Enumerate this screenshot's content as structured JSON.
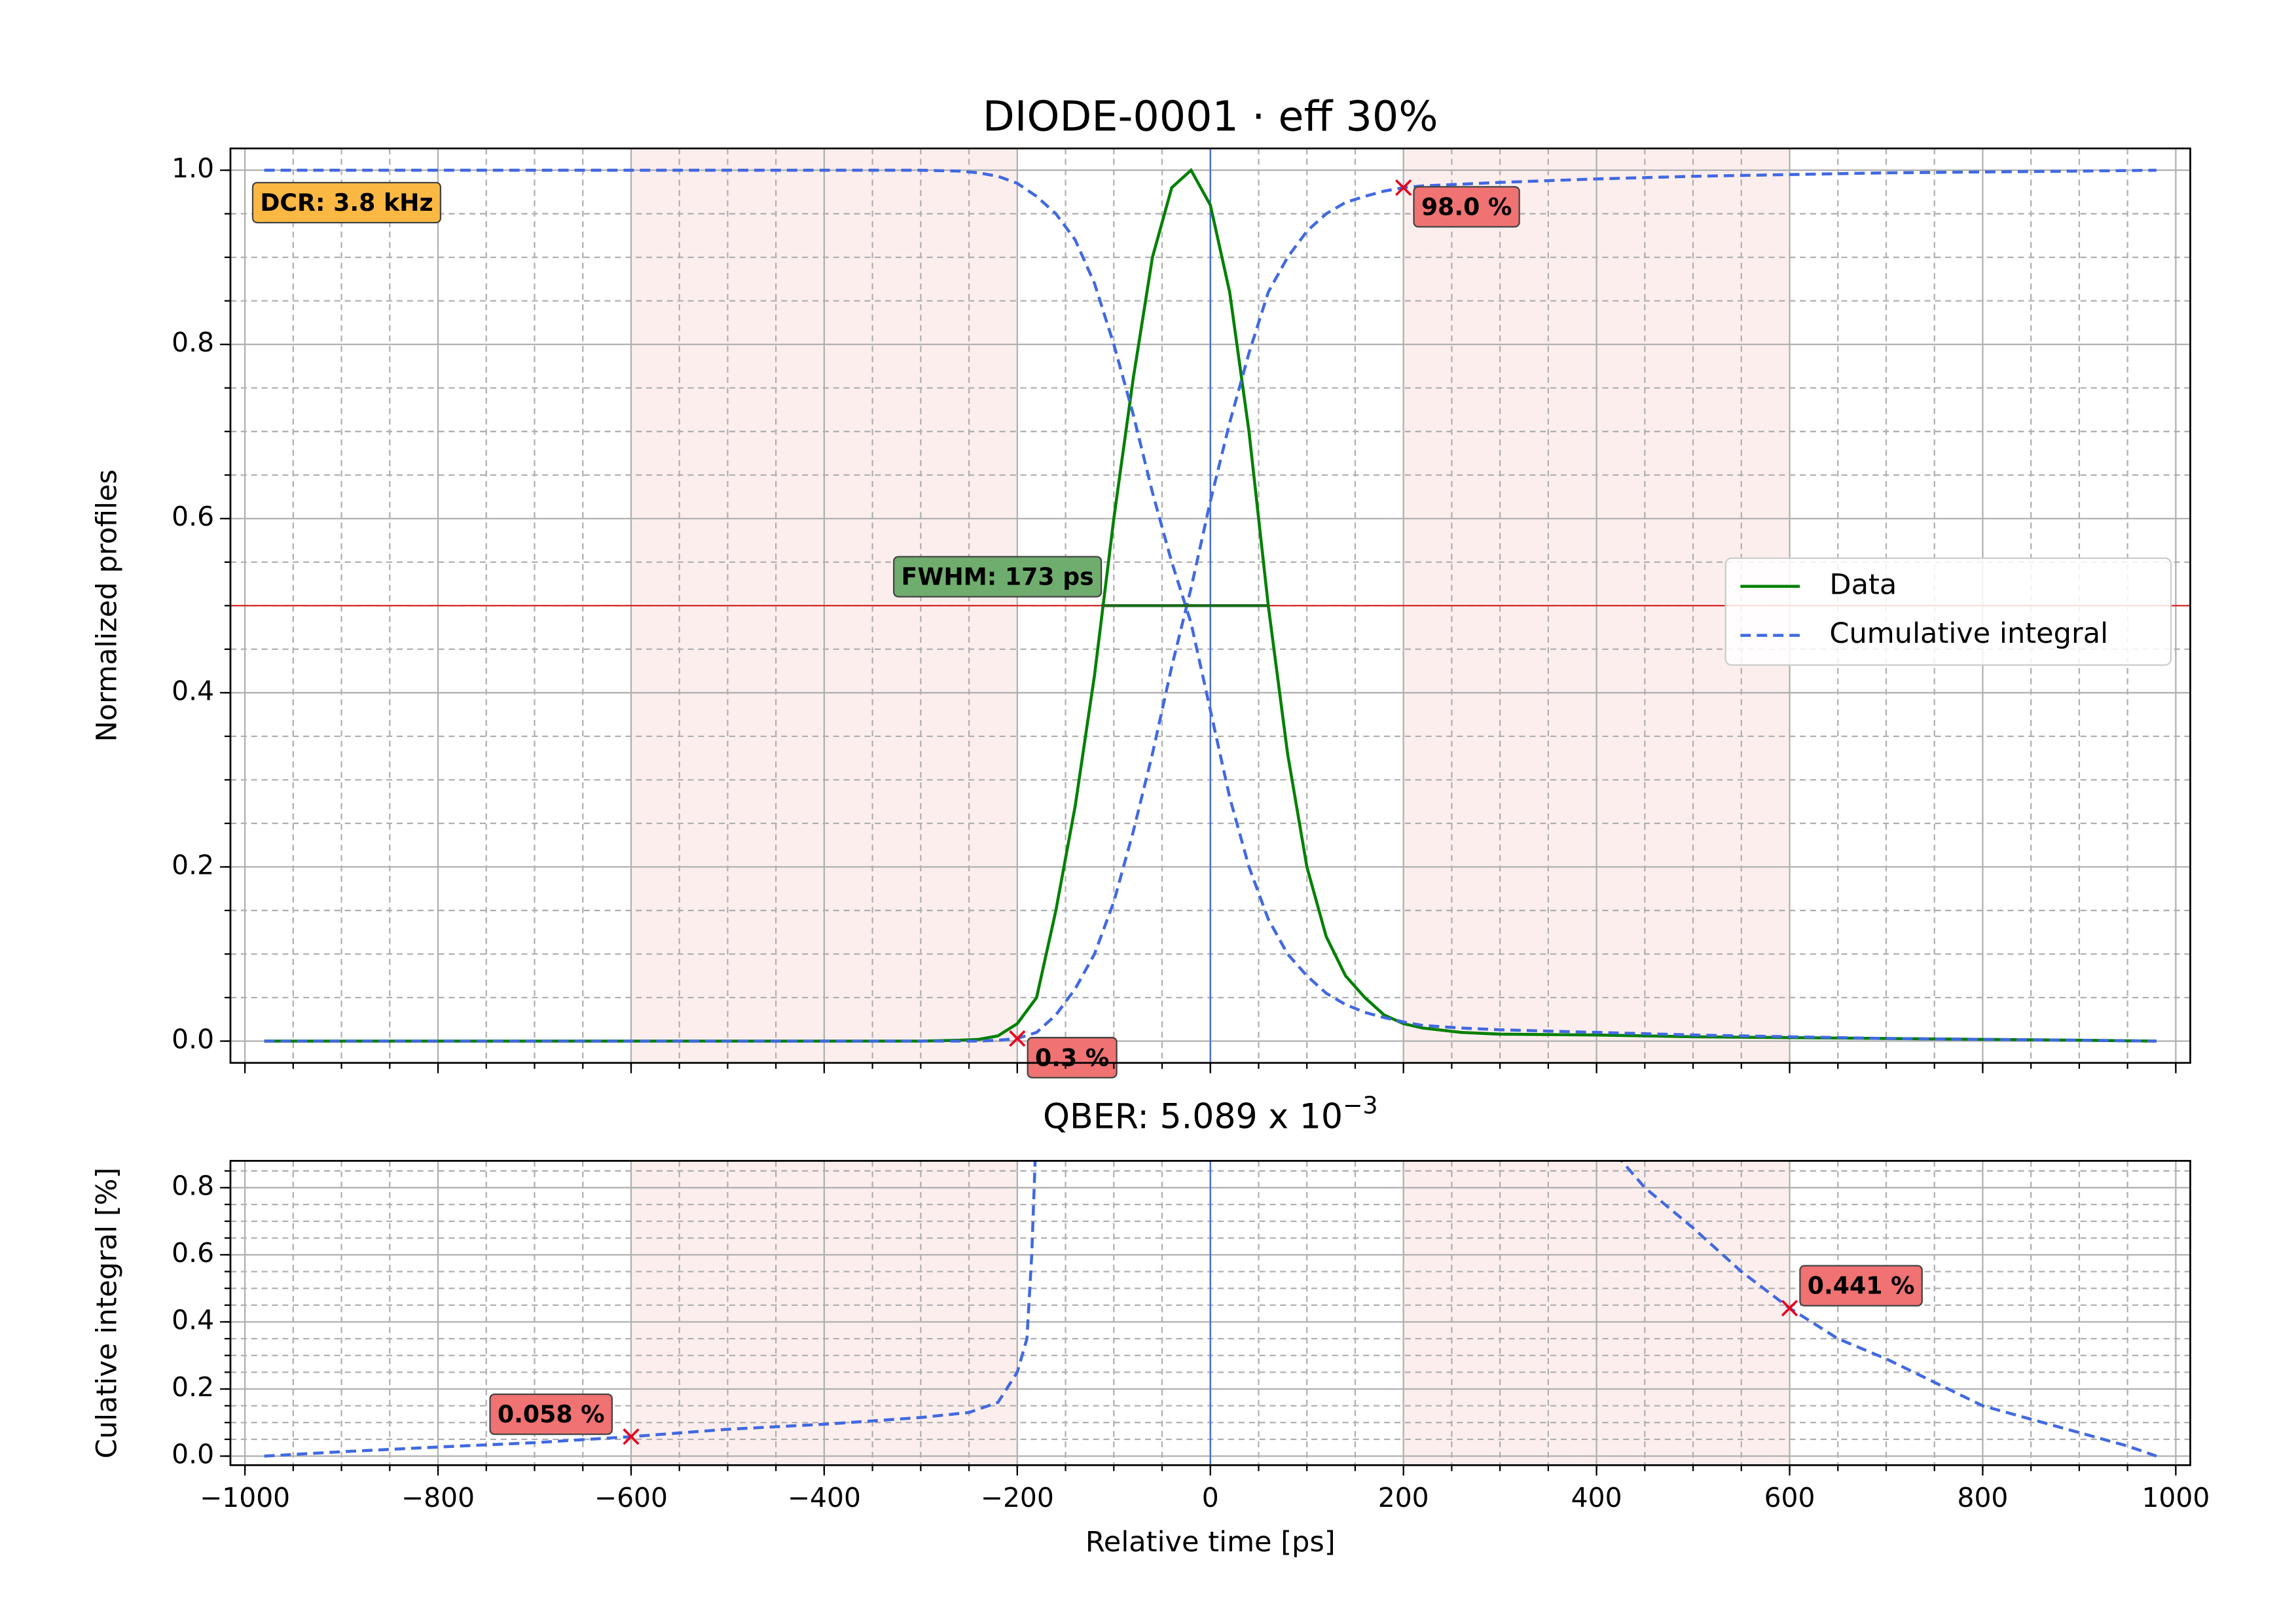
{
  "chart_data": [
    {
      "type": "line",
      "title": "DIODE-0001 · eff 30%",
      "y_label": "Normalized profiles",
      "x": [
        -980,
        -900,
        -800,
        -700,
        -600,
        -500,
        -400,
        -300,
        -260,
        -240,
        -220,
        -200,
        -180,
        -160,
        -140,
        -120,
        -100,
        -80,
        -60,
        -40,
        -20,
        0,
        20,
        40,
        60,
        80,
        100,
        120,
        140,
        160,
        180,
        200,
        220,
        260,
        300,
        400,
        500,
        600,
        700,
        800,
        900,
        980
      ],
      "series": [
        {
          "name": "Data",
          "color": "#008000",
          "dashed": false,
          "values": [
            0,
            0,
            0,
            0,
            0,
            0,
            0,
            0,
            0.001,
            0.002,
            0.006,
            0.02,
            0.05,
            0.15,
            0.27,
            0.42,
            0.6,
            0.76,
            0.9,
            0.98,
            1.0,
            0.96,
            0.86,
            0.7,
            0.5,
            0.33,
            0.2,
            0.12,
            0.075,
            0.05,
            0.03,
            0.02,
            0.015,
            0.01,
            0.008,
            0.007,
            0.005,
            0.004,
            0.003,
            0.002,
            0.001,
            0
          ]
        },
        {
          "name": "Cumulative integral",
          "color": "#4169e1",
          "dashed": true,
          "values": [
            0,
            0,
            0,
            0,
            0,
            0,
            0,
            0,
            0,
            0,
            0.001,
            0.003,
            0.01,
            0.03,
            0.06,
            0.1,
            0.16,
            0.24,
            0.33,
            0.43,
            0.52,
            0.62,
            0.71,
            0.79,
            0.86,
            0.9,
            0.93,
            0.95,
            0.963,
            0.97,
            0.976,
            0.98,
            0.982,
            0.984,
            0.986,
            0.99,
            0.993,
            0.995,
            0.997,
            0.998,
            0.999,
            1.0
          ]
        },
        {
          "color": "#4169e1",
          "dashed": true,
          "values": [
            1,
            1,
            1,
            1,
            1,
            1,
            1,
            1,
            0.999,
            0.997,
            0.993,
            0.985,
            0.97,
            0.95,
            0.92,
            0.87,
            0.8,
            0.72,
            0.63,
            0.55,
            0.48,
            0.38,
            0.28,
            0.2,
            0.14,
            0.1,
            0.075,
            0.055,
            0.042,
            0.033,
            0.027,
            0.022,
            0.018,
            0.015,
            0.013,
            0.01,
            0.007,
            0.005,
            0.003,
            0.002,
            0.001,
            0
          ]
        }
      ],
      "xlim": [
        -1015,
        1015
      ],
      "ylim": [
        -0.025,
        1.025
      ],
      "xticks": [
        -1000,
        -800,
        -600,
        -400,
        -200,
        0,
        200,
        400,
        600,
        800,
        1000
      ],
      "show_xtick_labels": false,
      "yticks": [
        {
          "value": 0,
          "label": "0.0"
        },
        0.2,
        0.4,
        0.6,
        0.8,
        {
          "value": 1,
          "label": "1.0"
        }
      ],
      "xminor": [
        -1000,
        -950,
        -900,
        -850,
        -800,
        -750,
        -700,
        -650,
        -600,
        -550,
        -500,
        -450,
        -400,
        -350,
        -300,
        -250,
        -200,
        -150,
        -100,
        -50,
        0,
        50,
        100,
        150,
        200,
        250,
        300,
        350,
        400,
        450,
        500,
        550,
        600,
        650,
        700,
        750,
        800,
        850,
        900,
        950,
        1000
      ],
      "yminor": [
        0,
        0.05,
        0.1,
        0.15,
        0.2,
        0.25,
        0.3,
        0.35,
        0.4,
        0.45,
        0.5,
        0.55,
        0.6,
        0.65,
        0.7,
        0.75,
        0.8,
        0.85,
        0.9,
        0.95,
        1.0
      ],
      "grid": true,
      "spans": [
        [
          -600,
          -200
        ],
        [
          200,
          600
        ]
      ],
      "span_color": "#fdeeee",
      "vline": 0,
      "vline_color": "#4169e1",
      "hline": 0.5,
      "hline_color": "#d62728",
      "fwhm": {
        "x": [
          -113,
          60
        ],
        "y": 0.5,
        "color": "#1e6b1e",
        "label": "FWHM: 173 ps",
        "box_color": "#6fad6f"
      },
      "badge": {
        "text": "DCR: 3.8 kHz",
        "box_color": "#fbb843"
      },
      "markers": [
        {
          "x": -200,
          "y": 0.003,
          "label": "0.3 %"
        },
        {
          "x": 200,
          "y": 0.98,
          "label": "98.0 %"
        }
      ],
      "marker_color": "#e8001a",
      "label_box_color": "#f07272",
      "legend": "center right"
    },
    {
      "type": "line",
      "title": "QBER: 5.089 x 10",
      "title_superscript": "−3",
      "x_label": "Relative time [ps]",
      "y_label": "Culative integral [%]",
      "x": [
        -980,
        -900,
        -800,
        -700,
        -600,
        -500,
        -400,
        -300,
        -250,
        -220,
        -200,
        -190,
        -185,
        -180,
        0,
        420,
        450,
        500,
        550,
        600,
        650,
        700,
        750,
        800,
        850,
        900,
        950,
        980
      ],
      "series": [
        {
          "color": "#4169e1",
          "dashed": true,
          "values": [
            0,
            0.013,
            0.027,
            0.04,
            0.058,
            0.08,
            0.095,
            0.115,
            0.13,
            0.16,
            0.25,
            0.35,
            0.6,
            1.0,
            null,
            0.9,
            0.8,
            0.68,
            0.55,
            0.441,
            0.35,
            0.29,
            0.22,
            0.15,
            0.11,
            0.07,
            0.03,
            0
          ]
        }
      ],
      "xlim": [
        -1015,
        1015
      ],
      "ylim": [
        -0.027,
        0.88
      ],
      "xticks": [
        {
          "value": -1000,
          "label": "−1000"
        },
        {
          "value": -800,
          "label": "−800"
        },
        {
          "value": -600,
          "label": "−600"
        },
        {
          "value": -400,
          "label": "−400"
        },
        {
          "value": -200,
          "label": "−200"
        },
        0,
        200,
        400,
        600,
        800,
        1000
      ],
      "show_xtick_labels": true,
      "yticks": [
        {
          "value": 0,
          "label": "0.0"
        },
        0.2,
        0.4,
        0.6,
        0.8
      ],
      "xminor": [
        -1000,
        -950,
        -900,
        -850,
        -800,
        -750,
        -700,
        -650,
        -600,
        -550,
        -500,
        -450,
        -400,
        -350,
        -300,
        -250,
        -200,
        -150,
        -100,
        -50,
        0,
        50,
        100,
        150,
        200,
        250,
        300,
        350,
        400,
        450,
        500,
        550,
        600,
        650,
        700,
        750,
        800,
        850,
        900,
        950,
        1000
      ],
      "yminor": [
        0,
        0.05,
        0.1,
        0.15,
        0.2,
        0.25,
        0.3,
        0.35,
        0.4,
        0.45,
        0.5,
        0.55,
        0.6,
        0.65,
        0.7,
        0.75,
        0.8,
        0.85
      ],
      "grid": true,
      "spans": [
        [
          -600,
          -200
        ],
        [
          200,
          600
        ]
      ],
      "span_color": "#fdeeee",
      "vline": 0,
      "vline_color": "#4169e1",
      "markers": [
        {
          "x": -600,
          "y": 0.058,
          "label": "0.058 %"
        },
        {
          "x": 600,
          "y": 0.441,
          "label": "0.441 %"
        }
      ],
      "marker_color": "#e8001a",
      "label_box_color": "#f07272"
    }
  ]
}
